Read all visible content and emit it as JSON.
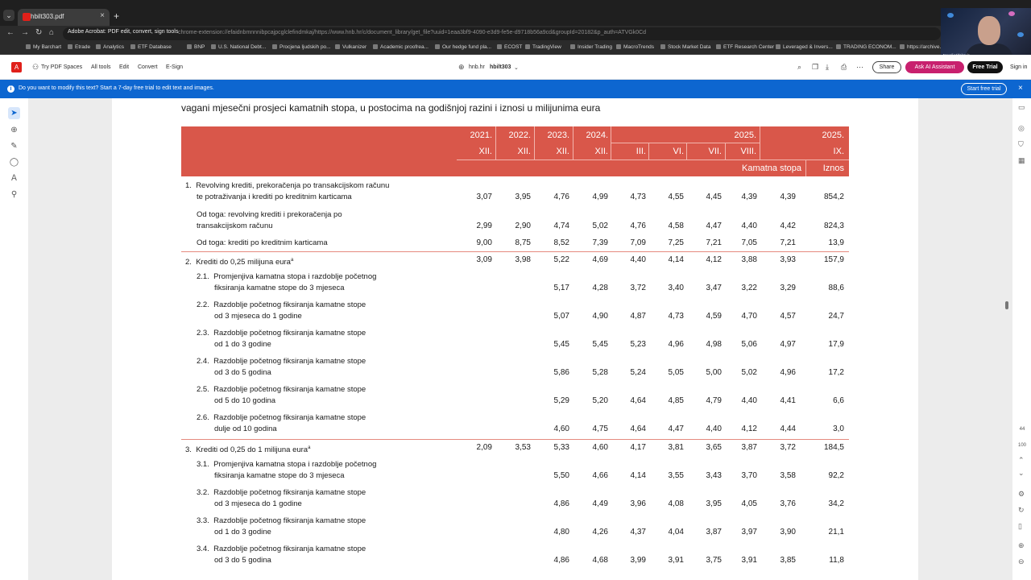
{
  "browser": {
    "tab_title": "hbilt303.pdf",
    "tab_close": "×",
    "new_tab": "+",
    "menu_glyph": "⌄",
    "nav": {
      "back": "←",
      "forward": "→",
      "reload": "↻",
      "home": "⌂"
    },
    "omnibox_chip": "Adobe Acrobat: PDF edit, convert, sign tools",
    "url": "chrome-extension://efaidnbmnnnibpcajpcglclefindmkaj/https://www.hnb.hr/c/document_library/get_file?uuid=1eaa3bf9-4090-e3d9-fe5e-d9718b56a9cd&groupId=20182&p_auth=ATVGk0Cd",
    "bookmarks": [
      "My Barchart",
      "Etrade",
      "Analytics",
      "ETF Database",
      "BNP",
      "U.S. National Debt...",
      "Procjena ljudskih po...",
      "Vulkanizer",
      "Academic proofrea...",
      "Our hedge fund pla...",
      "ECOST",
      "TradingView",
      "Insider Trading",
      "MacroTrends",
      "Stock Market Data",
      "ETF Research Center",
      "Leveraged & Invers...",
      "TRADING ECONOM...",
      "https://archive..."
    ]
  },
  "webcam": {
    "name": "Nevoli Vidakovic"
  },
  "acrobat": {
    "logo": "A",
    "try_spaces": "Try PDF Spaces",
    "menu": [
      "All tools",
      "Edit",
      "Convert",
      "E-Sign"
    ],
    "doc_host": "hnb.hr",
    "doc_name": "hbilt303",
    "share": "Share",
    "ai_assistant": "Ask AI Assistant",
    "free_trial": "Free Trial",
    "sign_in": "Sign in"
  },
  "banner": {
    "message": "Do you want to modify this text? Start a 7-day free trial to edit text and images.",
    "button": "Start free trial",
    "close": "×"
  },
  "right_rail": {
    "page_number": "44",
    "zoom": "100"
  },
  "document": {
    "title": "vagani mjesečni prosjeci kamatnih stopa, u postocima na godišnjoj razini i iznosi u milijunima eura",
    "header": {
      "years": [
        "2021.",
        "2022.",
        "2023.",
        "2024.",
        "2025.",
        "2025."
      ],
      "months": [
        "XII.",
        "XII.",
        "XII.",
        "XII.",
        "III.",
        "VI.",
        "VII.",
        "VIII.",
        "IX."
      ],
      "kamatna_stopa": "Kamatna stopa",
      "iznos": "Iznos"
    },
    "rows": [
      {
        "label": "1.  Revolving krediti, prekoračenja po transakcijskom računu",
        "label2": "te potraživanja i krediti po kreditnim karticama",
        "indent": 0,
        "values": [
          "3,07",
          "3,95",
          "4,76",
          "4,99",
          "4,73",
          "4,55",
          "4,45",
          "4,39",
          "4,39",
          "854,2"
        ]
      },
      {
        "label": "Od toga: revolving krediti i prekoračenja po",
        "label2": "transakcijskom računu",
        "indent": 1,
        "values": [
          "2,99",
          "2,90",
          "4,74",
          "5,02",
          "4,76",
          "4,58",
          "4,47",
          "4,40",
          "4,42",
          "824,3"
        ]
      },
      {
        "label": "Od toga: krediti po kreditnim karticama",
        "label2": "",
        "indent": 1,
        "values": [
          "9,00",
          "8,75",
          "8,52",
          "7,39",
          "7,09",
          "7,25",
          "7,21",
          "7,05",
          "7,21",
          "13,9"
        ]
      },
      {
        "label": "2.  Krediti do 0,25 milijuna eura",
        "sup": "a",
        "label2": "",
        "indent": 0,
        "values": [
          "3,09",
          "3,98",
          "5,22",
          "4,69",
          "4,40",
          "4,14",
          "4,12",
          "3,88",
          "3,93",
          "157,9"
        ]
      },
      {
        "label": "2.1.  Promjenjiva kamatna stopa i razdoblje početnog",
        "label2": "fiksiranja kamatne stope do 3 mjeseca",
        "indent": 1,
        "values": [
          "",
          "",
          "5,17",
          "4,28",
          "3,72",
          "3,40",
          "3,47",
          "3,22",
          "3,29",
          "88,6"
        ]
      },
      {
        "label": "2.2.  Razdoblje početnog fiksiranja kamatne stope",
        "label2": "od 3 mjeseca do 1 godine",
        "indent": 1,
        "values": [
          "",
          "",
          "5,07",
          "4,90",
          "4,87",
          "4,73",
          "4,59",
          "4,70",
          "4,57",
          "24,7"
        ]
      },
      {
        "label": "2.3.  Razdoblje početnog fiksiranja kamatne stope",
        "label2": "od 1 do 3 godine",
        "indent": 1,
        "values": [
          "",
          "",
          "5,45",
          "5,45",
          "5,23",
          "4,96",
          "4,98",
          "5,06",
          "4,97",
          "17,9"
        ]
      },
      {
        "label": "2.4.  Razdoblje početnog fiksiranja kamatne stope",
        "label2": "od 3 do 5 godina",
        "indent": 1,
        "values": [
          "",
          "",
          "5,86",
          "5,28",
          "5,24",
          "5,05",
          "5,00",
          "5,02",
          "4,96",
          "17,2"
        ]
      },
      {
        "label": "2.5.  Razdoblje početnog fiksiranja kamatne stope",
        "label2": "od 5 do 10 godina",
        "indent": 1,
        "values": [
          "",
          "",
          "5,29",
          "5,20",
          "4,64",
          "4,85",
          "4,79",
          "4,40",
          "4,41",
          "6,6"
        ]
      },
      {
        "label": "2.6.  Razdoblje početnog fiksiranja kamatne stope",
        "label2": "dulje od 10 godina",
        "indent": 1,
        "values": [
          "",
          "",
          "4,60",
          "4,75",
          "4,64",
          "4,47",
          "4,40",
          "4,12",
          "4,44",
          "3,0"
        ]
      },
      {
        "label": "3.  Krediti od 0,25 do 1 milijuna eura",
        "sup": "a",
        "label2": "",
        "indent": 0,
        "values": [
          "2,09",
          "3,53",
          "5,33",
          "4,60",
          "4,17",
          "3,81",
          "3,65",
          "3,87",
          "3,72",
          "184,5"
        ]
      },
      {
        "label": "3.1.  Promjenjiva kamatna stopa i razdoblje početnog",
        "label2": "fiksiranja kamatne stope do 3 mjeseca",
        "indent": 1,
        "values": [
          "",
          "",
          "5,50",
          "4,66",
          "4,14",
          "3,55",
          "3,43",
          "3,70",
          "3,58",
          "92,2"
        ]
      },
      {
        "label": "3.2.  Razdoblje početnog fiksiranja kamatne stope",
        "label2": "od 3 mjeseca do 1 godine",
        "indent": 1,
        "values": [
          "",
          "",
          "4,86",
          "4,49",
          "3,96",
          "4,08",
          "3,95",
          "4,05",
          "3,76",
          "34,2"
        ]
      },
      {
        "label": "3.3.  Razdoblje početnog fiksiranja kamatne stope",
        "label2": "od 1 do 3 godine",
        "indent": 1,
        "values": [
          "",
          "",
          "4,80",
          "4,26",
          "4,37",
          "4,04",
          "3,87",
          "3,97",
          "3,90",
          "21,1"
        ]
      },
      {
        "label": "3.4.  Razdoblje početnog fiksiranja kamatne stope",
        "label2": "od 3 do 5 godina",
        "indent": 1,
        "values": [
          "",
          "",
          "4,86",
          "4,68",
          "3,99",
          "3,91",
          "3,75",
          "3,91",
          "3,85",
          "11,8"
        ]
      }
    ]
  }
}
